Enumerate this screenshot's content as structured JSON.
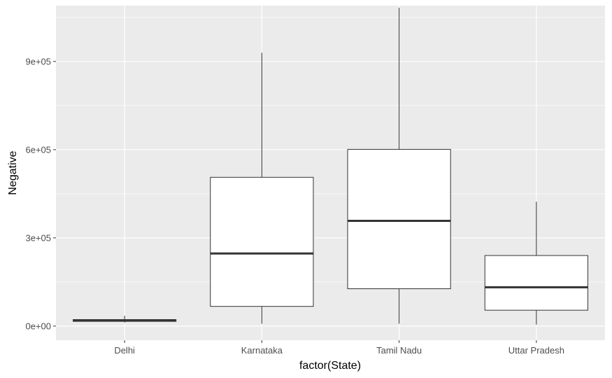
{
  "chart_data": {
    "type": "boxplot",
    "xlabel": "factor(State)",
    "ylabel": "Negative",
    "ylim": [
      -48000,
      1090000
    ],
    "yticks": [
      0,
      300000,
      600000,
      900000
    ],
    "ytick_labels": [
      "0e+00",
      "3e+05",
      "6e+05",
      "9e+05"
    ],
    "categories": [
      "Delhi",
      "Karnataka",
      "Tamil Nadu",
      "Uttar Pradesh"
    ],
    "boxes": [
      {
        "category": "Delhi",
        "min": 12000,
        "q1": 16000,
        "median": 20000,
        "q3": 22000,
        "max": 35000
      },
      {
        "category": "Karnataka",
        "min": 8000,
        "q1": 67000,
        "median": 247000,
        "q3": 506000,
        "max": 930000
      },
      {
        "category": "Tamil Nadu",
        "min": 8000,
        "q1": 127000,
        "median": 358000,
        "q3": 601000,
        "max": 1083000
      },
      {
        "category": "Uttar Pradesh",
        "min": 5000,
        "q1": 54000,
        "median": 132000,
        "q3": 240000,
        "max": 423000
      }
    ],
    "grid": true,
    "colors": {
      "panel": "#ebebeb",
      "grid": "#ffffff",
      "box_fill": "#ffffff",
      "box_stroke": "#333333"
    }
  }
}
